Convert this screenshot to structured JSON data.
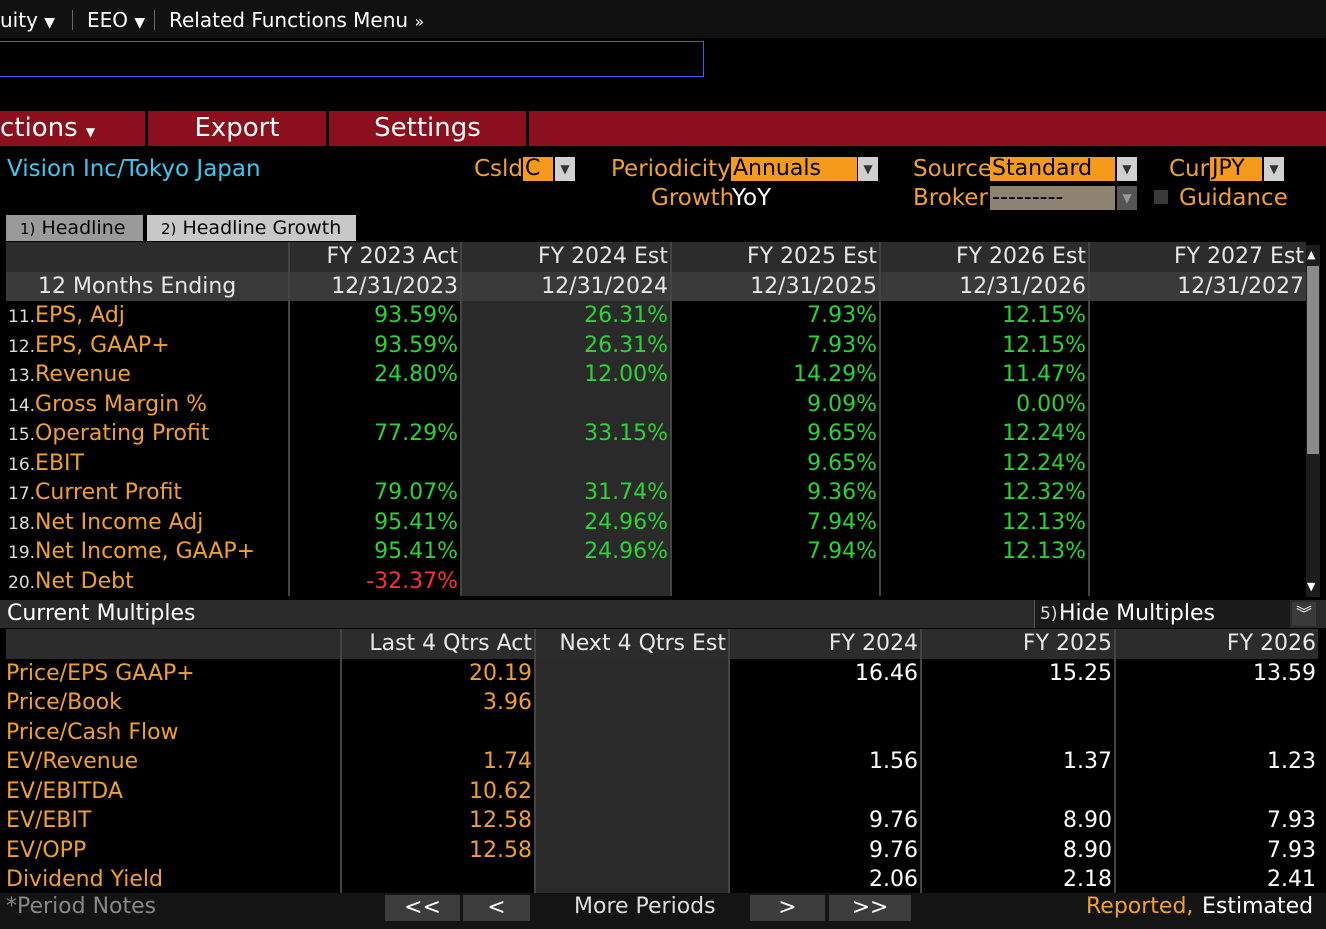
{
  "topbar": {
    "item1": "uity",
    "item2": "EEO",
    "item3": "Related Functions Menu"
  },
  "menu": {
    "actions": "ctions",
    "export": "Export",
    "settings": "Settings"
  },
  "header": {
    "company": "Vision Inc/Tokyo Japan",
    "csld_label": "Csld",
    "csld_value": "C",
    "periodicity_label": "Periodicity",
    "periodicity_value": "Annuals",
    "growth_label": "Growth",
    "growth_value": "YoY",
    "source_label": "Source",
    "source_value": "Standard",
    "broker_label": "Broker",
    "broker_value": "---------",
    "cur_label": "Cur",
    "cur_value": "JPY",
    "guidance_label": "Guidance"
  },
  "tabs": [
    {
      "num": "1)",
      "label": "Headline"
    },
    {
      "num": "2)",
      "label": "Headline Growth"
    }
  ],
  "growth_table": {
    "period_headers": [
      "FY 2023 Act",
      "FY 2024 Est",
      "FY 2025 Est",
      "FY 2026 Est",
      "FY 2027 Est"
    ],
    "row_label_header": "12 Months Ending",
    "dates": [
      "12/31/2023",
      "12/31/2024",
      "12/31/2025",
      "12/31/2026",
      "12/31/2027"
    ],
    "rows": [
      {
        "num": "11.",
        "label": "EPS, Adj",
        "values": [
          "93.59%",
          "26.31%",
          "7.93%",
          "12.15%",
          ""
        ]
      },
      {
        "num": "12.",
        "label": "EPS, GAAP+",
        "values": [
          "93.59%",
          "26.31%",
          "7.93%",
          "12.15%",
          ""
        ]
      },
      {
        "num": "13.",
        "label": "Revenue",
        "values": [
          "24.80%",
          "12.00%",
          "14.29%",
          "11.47%",
          ""
        ]
      },
      {
        "num": "14.",
        "label": "Gross Margin %",
        "values": [
          "",
          "",
          "9.09%",
          "0.00%",
          ""
        ]
      },
      {
        "num": "15.",
        "label": "Operating Profit",
        "values": [
          "77.29%",
          "33.15%",
          "9.65%",
          "12.24%",
          ""
        ]
      },
      {
        "num": "16.",
        "label": "EBIT",
        "values": [
          "",
          "",
          "9.65%",
          "12.24%",
          ""
        ]
      },
      {
        "num": "17.",
        "label": "Current Profit",
        "values": [
          "79.07%",
          "31.74%",
          "9.36%",
          "12.32%",
          ""
        ]
      },
      {
        "num": "18.",
        "label": "Net Income Adj",
        "values": [
          "95.41%",
          "24.96%",
          "7.94%",
          "12.13%",
          ""
        ]
      },
      {
        "num": "19.",
        "label": "Net Income, GAAP+",
        "values": [
          "95.41%",
          "24.96%",
          "7.94%",
          "12.13%",
          ""
        ]
      },
      {
        "num": "20.",
        "label": "Net Debt",
        "values": [
          "-32.37%",
          "",
          "",
          "",
          ""
        ]
      }
    ]
  },
  "multiples_bar": {
    "title": "Current Multiples",
    "hide_num": "5)",
    "hide_label": "Hide Multiples"
  },
  "multiples_table": {
    "headers": [
      "Last 4 Qtrs Act",
      "Next 4 Qtrs Est",
      "FY 2024",
      "FY 2025",
      "FY 2026"
    ],
    "rows": [
      {
        "label": "Price/EPS GAAP+",
        "values": [
          "20.19",
          "",
          "16.46",
          "15.25",
          "13.59"
        ]
      },
      {
        "label": "Price/Book",
        "values": [
          "3.96",
          "",
          "",
          "",
          ""
        ]
      },
      {
        "label": "Price/Cash Flow",
        "values": [
          "",
          "",
          "",
          "",
          ""
        ]
      },
      {
        "label": "EV/Revenue",
        "values": [
          "1.74",
          "",
          "1.56",
          "1.37",
          "1.23"
        ]
      },
      {
        "label": "EV/EBITDA",
        "values": [
          "10.62",
          "",
          "",
          "",
          ""
        ]
      },
      {
        "label": "EV/EBIT",
        "values": [
          "12.58",
          "",
          "9.76",
          "8.90",
          "7.93"
        ]
      },
      {
        "label": "EV/OPP",
        "values": [
          "12.58",
          "",
          "9.76",
          "8.90",
          "7.93"
        ]
      },
      {
        "label": "Dividend Yield",
        "values": [
          "",
          "",
          "2.06",
          "2.18",
          "2.41"
        ]
      }
    ]
  },
  "footer": {
    "period_notes": "*Period Notes",
    "first": "<<",
    "prev": "<",
    "more_periods": "More Periods",
    "next": ">",
    "last": ">>",
    "reported": "Reported,",
    "estimated": "Estimated"
  },
  "colors": {
    "menu_red": "#8b0f1c",
    "accent_orange": "#f0a030",
    "positive_green": "#2bd336",
    "negative_red": "#ff3030",
    "company_cyan": "#3cc8f0"
  }
}
